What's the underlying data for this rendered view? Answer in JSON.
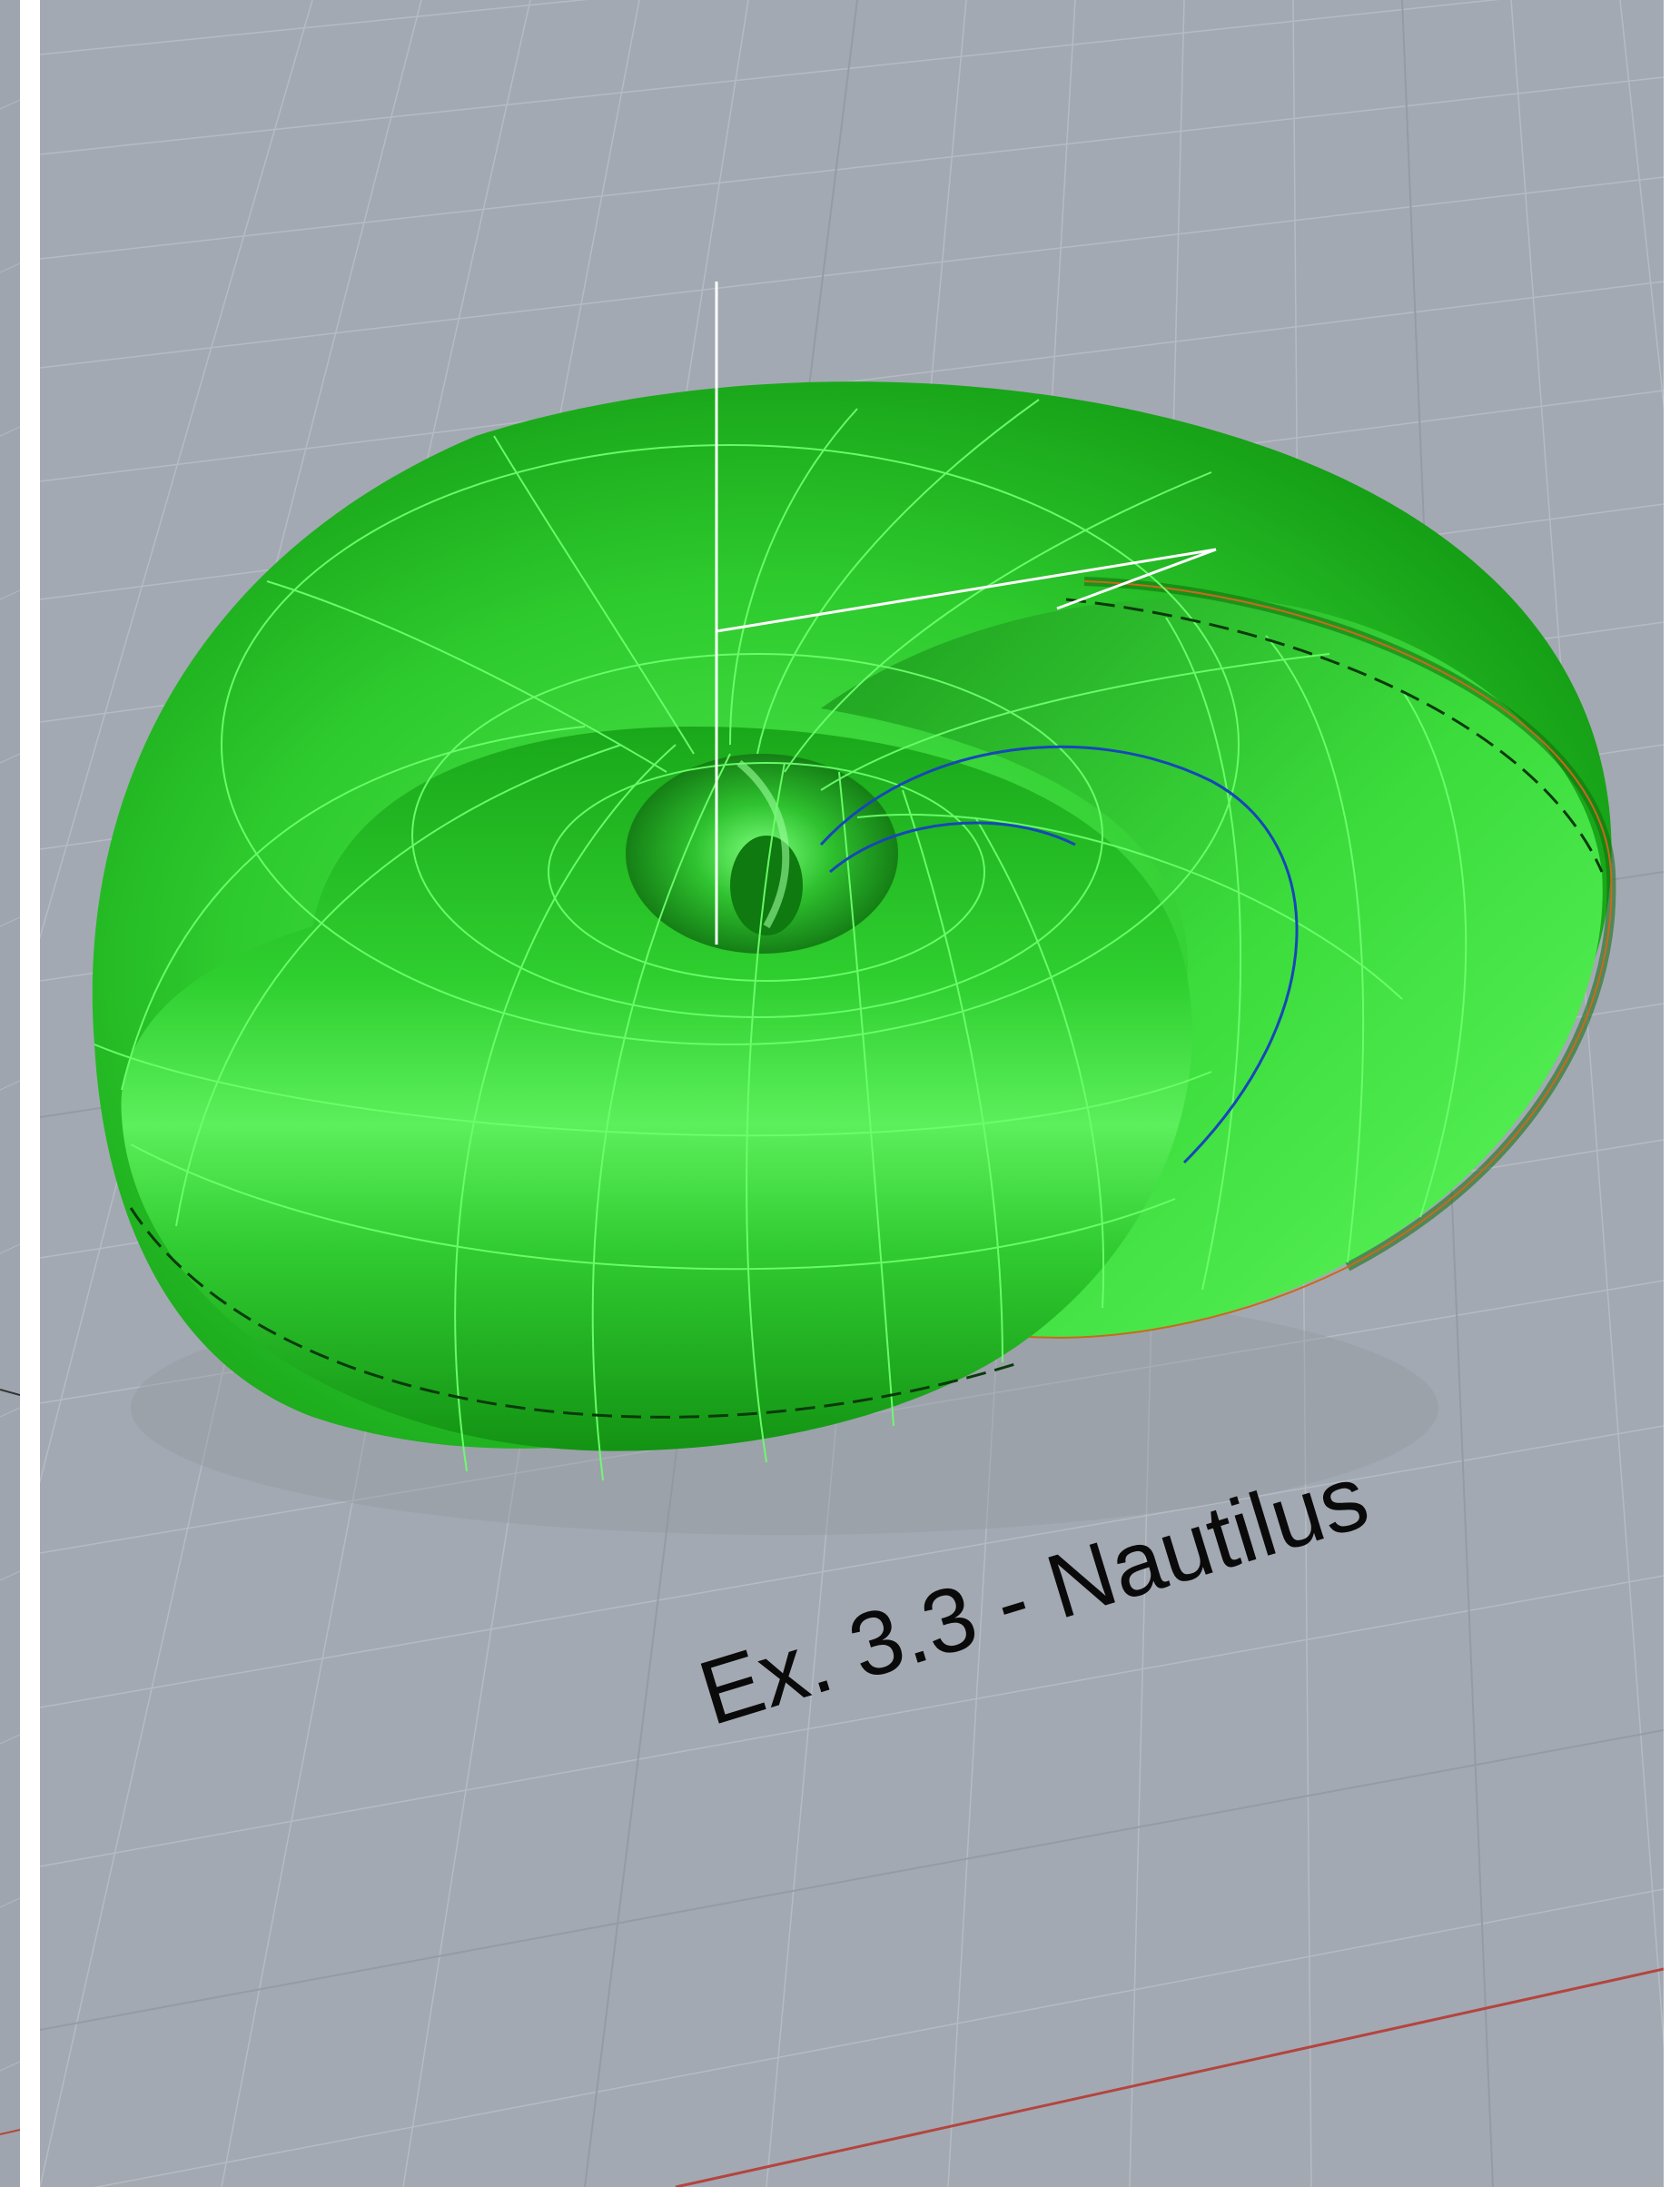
{
  "viewport": {
    "caption": "Ex. 3.3 - Nautilus",
    "colors": {
      "background": "#a3a9b2",
      "grid_minor": "#b4b9c1",
      "grid_major": "#8f959e",
      "axis_x": "#b3453f",
      "shell_dark": "#139a13",
      "shell_mid": "#22c522",
      "shell_light": "#66ff66",
      "isocurve": "#6cff6c",
      "section_curve": "#1747b8",
      "edge_curve": "#c76a1a",
      "cplane_axis": "#ffffff"
    }
  }
}
